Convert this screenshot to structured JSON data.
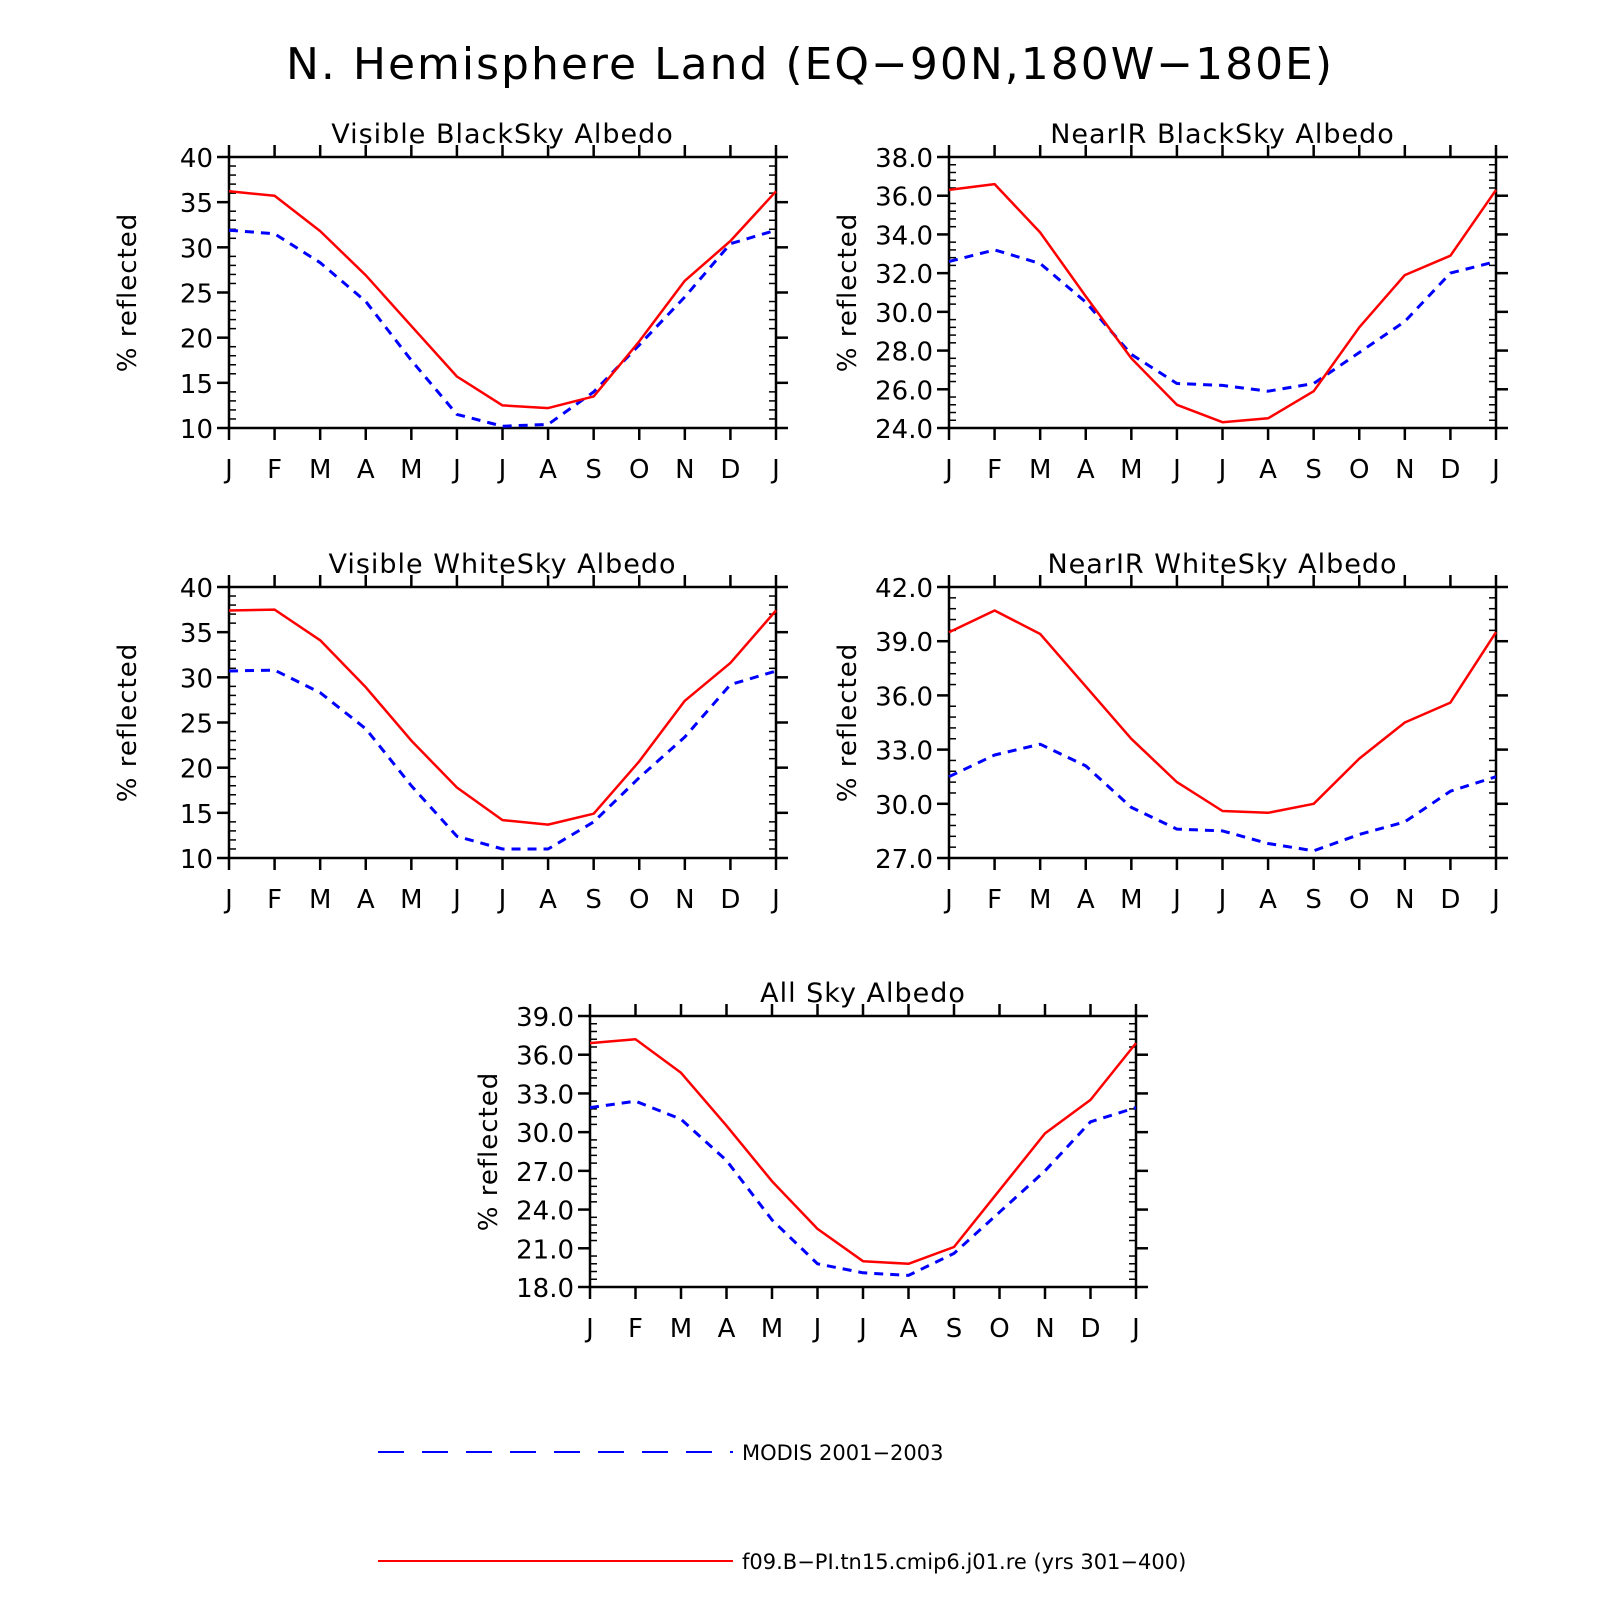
{
  "figure": {
    "title": "N. Hemisphere Land (EQ−90N,180W−180E)"
  },
  "legend": [
    {
      "label": "MODIS 2001−2003",
      "color": "#0000ff",
      "dash": "dashed"
    },
    {
      "label": "f09.B−PI.tn15.cmip6.j01.re (yrs 301−400)",
      "color": "#ff0000",
      "dash": "solid"
    }
  ],
  "chart_data": [
    {
      "type": "line",
      "title": "Visible BlackSky Albedo",
      "xlabel": "",
      "ylabel": "% reflected",
      "x": [
        "J",
        "F",
        "M",
        "A",
        "M",
        "J",
        "J",
        "A",
        "S",
        "O",
        "N",
        "D",
        "J"
      ],
      "ylim": [
        10,
        40
      ],
      "yticks": [
        "10",
        "15",
        "20",
        "25",
        "30",
        "35",
        "40"
      ],
      "series": [
        {
          "name": "MODIS 2001−2003",
          "values": [
            31.9,
            31.5,
            28.3,
            24.0,
            17.5,
            11.5,
            10.2,
            10.4,
            14.0,
            19.2,
            24.5,
            30.4,
            31.9
          ]
        },
        {
          "name": "f09.B−PI.tn15.cmip6.j01.re (yrs 301−400)",
          "values": [
            36.2,
            35.7,
            31.8,
            26.9,
            21.3,
            15.7,
            12.5,
            12.2,
            13.5,
            19.6,
            26.3,
            30.7,
            36.2
          ]
        }
      ]
    },
    {
      "type": "line",
      "title": "NearIR BlackSky Albedo",
      "xlabel": "",
      "ylabel": "% reflected",
      "x": [
        "J",
        "F",
        "M",
        "A",
        "M",
        "J",
        "J",
        "A",
        "S",
        "O",
        "N",
        "D",
        "J"
      ],
      "ylim": [
        24,
        38
      ],
      "yticks": [
        "24.0",
        "26.0",
        "28.0",
        "30.0",
        "32.0",
        "34.0",
        "36.0",
        "38.0"
      ],
      "series": [
        {
          "name": "MODIS 2001−2003",
          "values": [
            32.6,
            33.2,
            32.5,
            30.5,
            27.8,
            26.3,
            26.2,
            25.9,
            26.3,
            27.9,
            29.5,
            32.0,
            32.6
          ]
        },
        {
          "name": "f09.B−PI.tn15.cmip6.j01.re (yrs 301−400)",
          "values": [
            36.3,
            36.6,
            34.1,
            30.8,
            27.6,
            25.2,
            24.3,
            24.5,
            25.9,
            29.2,
            31.9,
            32.9,
            36.3
          ]
        }
      ]
    },
    {
      "type": "line",
      "title": "Visible WhiteSky Albedo",
      "xlabel": "",
      "ylabel": "% reflected",
      "x": [
        "J",
        "F",
        "M",
        "A",
        "M",
        "J",
        "J",
        "A",
        "S",
        "O",
        "N",
        "D",
        "J"
      ],
      "ylim": [
        10,
        40
      ],
      "yticks": [
        "10",
        "15",
        "20",
        "25",
        "30",
        "35",
        "40"
      ],
      "series": [
        {
          "name": "MODIS 2001−2003",
          "values": [
            30.7,
            30.8,
            28.3,
            24.3,
            18.0,
            12.4,
            11.0,
            11.0,
            14.0,
            18.9,
            23.4,
            29.2,
            30.7
          ]
        },
        {
          "name": "f09.B−PI.tn15.cmip6.j01.re (yrs 301−400)",
          "values": [
            37.4,
            37.5,
            34.1,
            28.9,
            23.0,
            17.8,
            14.2,
            13.7,
            14.9,
            20.7,
            27.4,
            31.6,
            37.4
          ]
        }
      ]
    },
    {
      "type": "line",
      "title": "NearIR WhiteSky Albedo",
      "xlabel": "",
      "ylabel": "% reflected",
      "x": [
        "J",
        "F",
        "M",
        "A",
        "M",
        "J",
        "J",
        "A",
        "S",
        "O",
        "N",
        "D",
        "J"
      ],
      "ylim": [
        27,
        42
      ],
      "yticks": [
        "27.0",
        "30.0",
        "33.0",
        "36.0",
        "39.0",
        "42.0"
      ],
      "series": [
        {
          "name": "MODIS 2001−2003",
          "values": [
            31.5,
            32.7,
            33.3,
            32.1,
            29.8,
            28.6,
            28.5,
            27.8,
            27.4,
            28.3,
            29.0,
            30.7,
            31.5
          ]
        },
        {
          "name": "f09.B−PI.tn15.cmip6.j01.re (yrs 301−400)",
          "values": [
            39.5,
            40.7,
            39.4,
            36.5,
            33.6,
            31.2,
            29.6,
            29.5,
            30.0,
            32.5,
            34.5,
            35.6,
            39.5
          ]
        }
      ]
    },
    {
      "type": "line",
      "title": "All Sky Albedo",
      "xlabel": "",
      "ylabel": "% reflected",
      "x": [
        "J",
        "F",
        "M",
        "A",
        "M",
        "J",
        "J",
        "A",
        "S",
        "O",
        "N",
        "D",
        "J"
      ],
      "ylim": [
        18,
        39
      ],
      "yticks": [
        "18.0",
        "21.0",
        "24.0",
        "27.0",
        "30.0",
        "33.0",
        "36.0",
        "39.0"
      ],
      "series": [
        {
          "name": "MODIS 2001−2003",
          "values": [
            31.9,
            32.4,
            31.0,
            27.8,
            23.2,
            19.8,
            19.1,
            18.9,
            20.6,
            23.8,
            27.0,
            30.8,
            31.9
          ]
        },
        {
          "name": "f09.B−PI.tn15.cmip6.j01.re (yrs 301−400)",
          "values": [
            36.9,
            37.2,
            34.6,
            30.5,
            26.2,
            22.5,
            20.0,
            19.8,
            21.1,
            25.5,
            29.9,
            32.5,
            36.9
          ]
        }
      ]
    }
  ]
}
